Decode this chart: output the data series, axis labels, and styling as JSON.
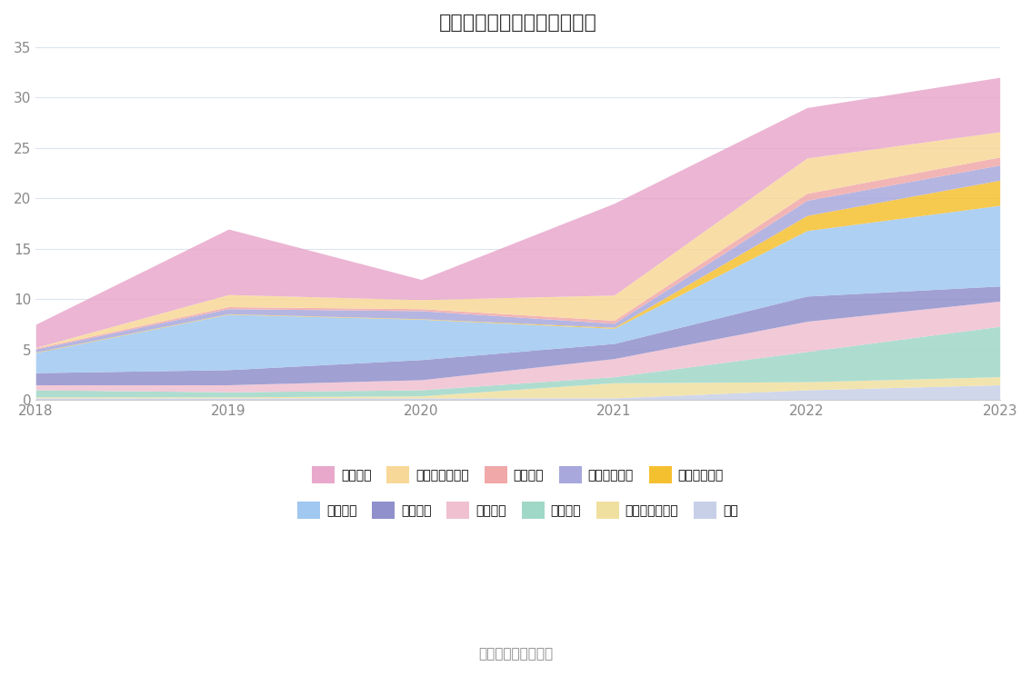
{
  "years": [
    2018,
    2019,
    2020,
    2021,
    2022,
    2023
  ],
  "title": "历年主要资产堆积图（亿元）",
  "source": "数据来源：恒生聚源",
  "ylim": [
    0,
    35
  ],
  "yticks": [
    0,
    5,
    10,
    15,
    20,
    25,
    30,
    35
  ],
  "series": [
    {
      "name": "其它",
      "color": "#c8d0e8",
      "values": [
        0.2,
        0.2,
        0.2,
        0.2,
        1.0,
        1.5
      ]
    },
    {
      "name": "其他非流动资产",
      "color": "#f0e0a0",
      "values": [
        0.1,
        0.1,
        0.2,
        1.5,
        0.8,
        0.8
      ]
    },
    {
      "name": "开发支出",
      "color": "#a0d8c8",
      "values": [
        0.7,
        0.5,
        0.6,
        0.6,
        3.0,
        5.0
      ]
    },
    {
      "name": "无形资产",
      "color": "#f0c0d0",
      "values": [
        0.5,
        0.7,
        1.0,
        1.8,
        3.0,
        2.5
      ]
    },
    {
      "name": "在建工程",
      "color": "#9090cc",
      "values": [
        1.2,
        1.5,
        2.0,
        1.5,
        2.5,
        1.5
      ]
    },
    {
      "name": "固定资产",
      "color": "#a0c8f0",
      "values": [
        2.0,
        5.5,
        4.0,
        1.5,
        6.5,
        8.0
      ]
    },
    {
      "name": "长期股权投资",
      "color": "#f5c030",
      "values": [
        0.05,
        0.05,
        0.05,
        0.1,
        1.5,
        2.5
      ]
    },
    {
      "name": "其他流动资产",
      "color": "#a8a8dd",
      "values": [
        0.3,
        0.5,
        0.8,
        0.4,
        1.5,
        1.5
      ]
    },
    {
      "name": "应收账款",
      "color": "#f0a8a8",
      "values": [
        0.1,
        0.2,
        0.2,
        0.3,
        0.7,
        0.8
      ]
    },
    {
      "name": "交易性金融资产",
      "color": "#f8d898",
      "values": [
        0.05,
        1.2,
        0.9,
        2.5,
        3.5,
        2.5
      ]
    },
    {
      "name": "货币资金",
      "color": "#e8a8cc",
      "values": [
        2.3,
        6.5,
        2.0,
        9.1,
        5.0,
        5.4
      ]
    }
  ],
  "background_color": "#ffffff",
  "grid_color": "#dde4f0",
  "axis_color": "#cccccc",
  "row1_order": [
    "货币资金",
    "交易性金融资产",
    "应收账款",
    "其他流动资产",
    "长期股权投资"
  ],
  "row2_order": [
    "固定资产",
    "在建工程",
    "无形资产",
    "开发支出",
    "其他非流动资产",
    "其它"
  ]
}
